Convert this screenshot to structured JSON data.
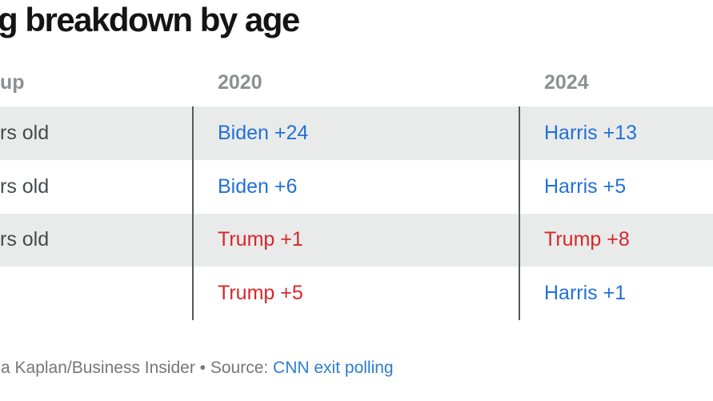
{
  "title": "g breakdown by age",
  "table": {
    "headers": [
      {
        "label": "up"
      },
      {
        "label": "2020"
      },
      {
        "label": "2024"
      }
    ],
    "rows": [
      {
        "age_label": "rs old",
        "val_2020": {
          "text": "Biden +24",
          "party": "dem"
        },
        "val_2024": {
          "text": "Harris +13",
          "party": "dem"
        }
      },
      {
        "age_label": "rs old",
        "val_2020": {
          "text": "Biden +6",
          "party": "dem"
        },
        "val_2024": {
          "text": "Harris +5",
          "party": "dem"
        }
      },
      {
        "age_label": "rs old",
        "val_2020": {
          "text": "Trump +1",
          "party": "rep"
        },
        "val_2024": {
          "text": "Trump +8",
          "party": "rep"
        }
      },
      {
        "age_label": "",
        "val_2020": {
          "text": "Trump +5",
          "party": "rep"
        },
        "val_2024": {
          "text": "Harris +1",
          "party": "dem"
        }
      }
    ]
  },
  "footer": {
    "credit": "a Kaplan/Business Insider • Source: ",
    "source_link": "CNN exit polling"
  },
  "colors": {
    "dem_blue": "#2271d8",
    "rep_red": "#d8262b",
    "row_alt_bg": "#e9ebea",
    "divider_gray": "#56595a",
    "header_gray": "#8b9191",
    "label_gray": "#454a4a",
    "footer_gray": "#767676",
    "link_blue": "#2e7dd1"
  },
  "chart_data": {
    "type": "table",
    "title": "g breakdown by age",
    "columns": [
      "up",
      "2020",
      "2024"
    ],
    "rows": [
      [
        "rs old",
        "Biden +24",
        "Harris +13"
      ],
      [
        "rs old",
        "Biden +6",
        "Harris +5"
      ],
      [
        "rs old",
        "Trump +1",
        "Trump +8"
      ],
      [
        "",
        "Trump +5",
        "Harris +1"
      ]
    ],
    "notes": "Margins: blue = Democratic candidate lead, red = Trump lead. Rows shaded alternately gray/white.",
    "source": "a Kaplan/Business Insider • Source: CNN exit polling"
  }
}
